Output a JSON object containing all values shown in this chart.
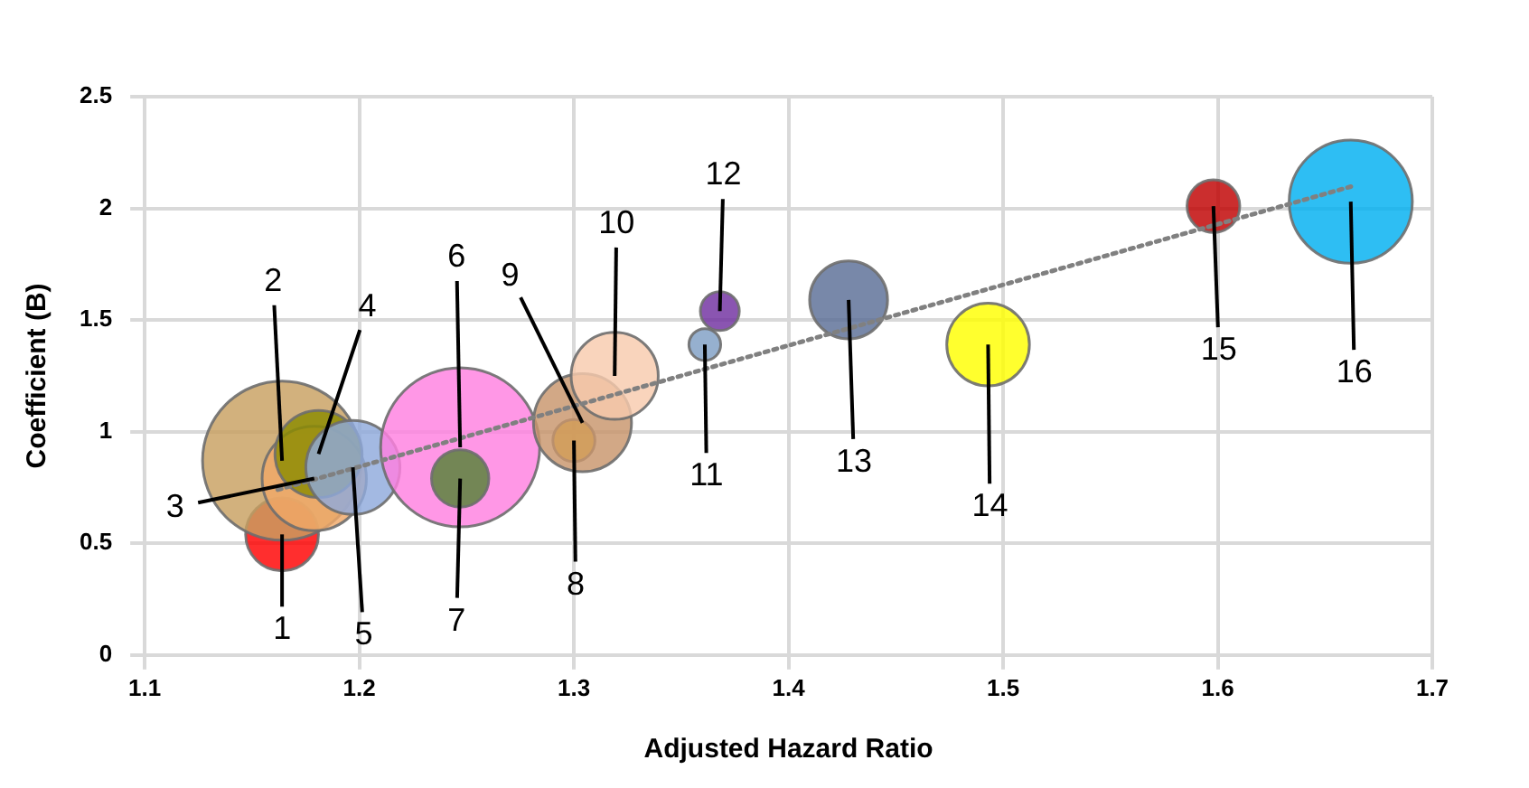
{
  "chart_data": {
    "type": "bubble",
    "xlabel": "Adjusted Hazard Ratio",
    "ylabel": "Coefficient (B)",
    "xlim": [
      1.1,
      1.7
    ],
    "xticks": [
      1.1,
      1.2,
      1.3,
      1.4,
      1.5,
      1.6,
      1.7
    ],
    "ylim": [
      0,
      2.5
    ],
    "yticks": [
      0,
      0.5,
      1,
      1.5,
      2,
      2.5
    ],
    "grid": true,
    "legend": false,
    "series": [
      {
        "x": [
          1.164,
          1.164,
          1.179,
          1.181,
          1.197,
          1.247,
          1.247,
          1.3,
          1.304,
          1.319,
          1.361,
          1.368,
          1.428,
          1.493,
          1.598,
          1.662
        ],
        "values": [
          0.54,
          0.87,
          0.79,
          0.9,
          0.84,
          0.93,
          0.79,
          0.96,
          1.04,
          1.25,
          1.39,
          1.54,
          1.59,
          1.39,
          2.01,
          2.03
        ],
        "sizes": [
          0.21,
          1,
          0.43,
          0.3,
          0.35,
          1,
          0.13,
          0.07,
          0.38,
          0.3,
          0.04,
          0.06,
          0.24,
          0.27,
          0.11,
          0.6
        ],
        "colors": [
          "#ff0000",
          "#c8a060",
          "#f0a868",
          "#8b8b00",
          "#8faadc",
          "#ff80e0",
          "#548235",
          "#ffc000",
          "#c8956b",
          "#f8cbad",
          "#7f9fc5",
          "#7030a0",
          "#5a6e96",
          "#ffff00",
          "#c00000",
          "#00b0f0"
        ]
      },
      {
        "type": "line",
        "x": [
          1.162,
          1.663
        ],
        "values": [
          0.74,
          2.1
        ],
        "color": "#808080",
        "line_style": "dotted",
        "marker": "none"
      }
    ],
    "annotations": [
      {
        "text": "1",
        "x": 1.164,
        "y": 0.54
      },
      {
        "text": "2",
        "x": 1.164,
        "y": 0.87
      },
      {
        "text": "3",
        "x": 1.179,
        "y": 0.79
      },
      {
        "text": "4",
        "x": 1.181,
        "y": 0.9
      },
      {
        "text": "5",
        "x": 1.197,
        "y": 0.84
      },
      {
        "text": "6",
        "x": 1.247,
        "y": 0.93
      },
      {
        "text": "7",
        "x": 1.247,
        "y": 0.79
      },
      {
        "text": "8",
        "x": 1.3,
        "y": 0.96
      },
      {
        "text": "9",
        "x": 1.304,
        "y": 1.04
      },
      {
        "text": "10",
        "x": 1.319,
        "y": 1.25
      },
      {
        "text": "11",
        "x": 1.361,
        "y": 1.39
      },
      {
        "text": "12",
        "x": 1.368,
        "y": 1.54
      },
      {
        "text": "13",
        "x": 1.428,
        "y": 1.59
      },
      {
        "text": "14",
        "x": 1.493,
        "y": 1.39
      },
      {
        "text": "15",
        "x": 1.598,
        "y": 2.01
      },
      {
        "text": "16",
        "x": 1.662,
        "y": 2.03
      }
    ]
  }
}
